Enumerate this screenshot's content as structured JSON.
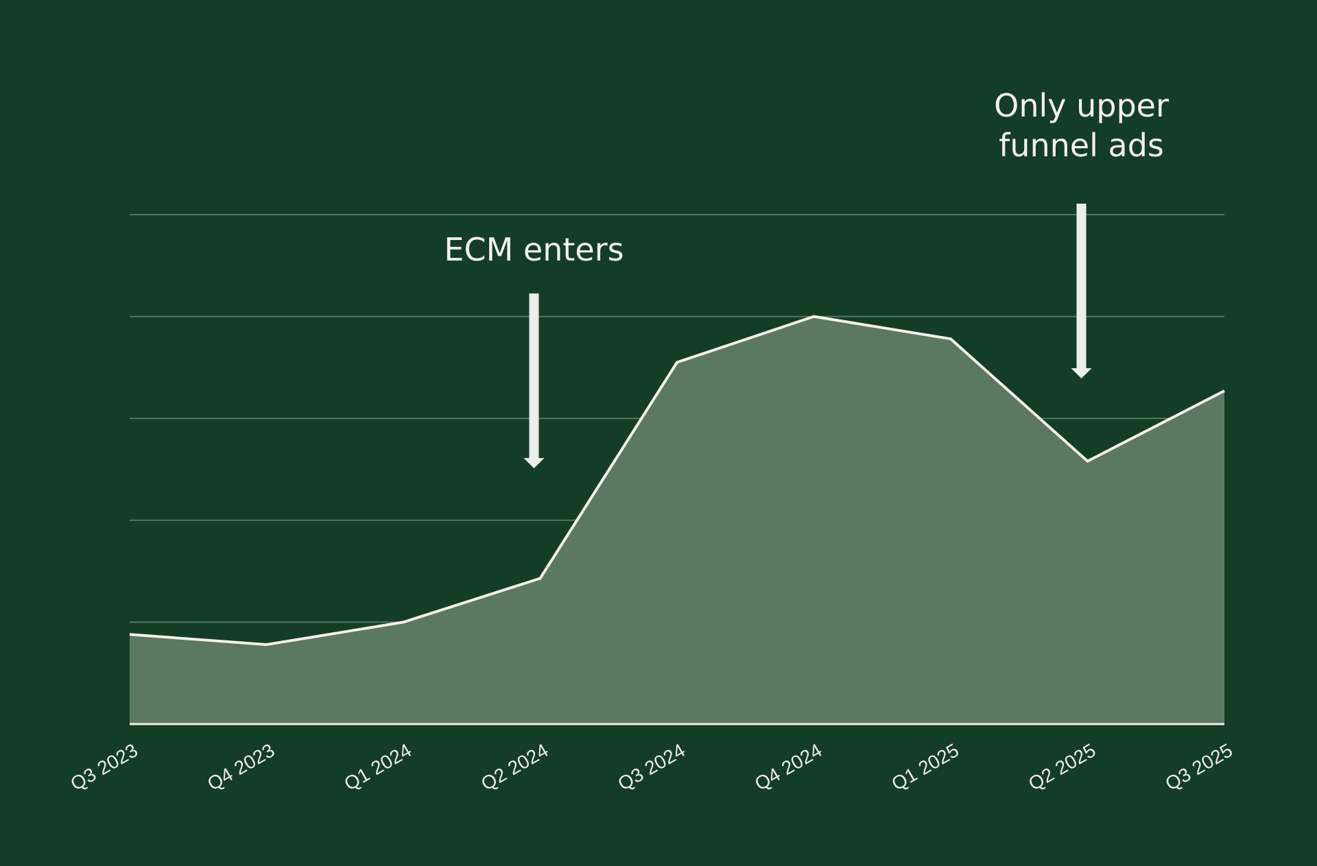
{
  "colors": {
    "background": "#143d26",
    "area_fill": "#5a7862",
    "line": "#f3f1e6",
    "gridline": "#4f7a5d",
    "text": "#f2f2ee",
    "arrow": "#ededea"
  },
  "chart_data": {
    "type": "area",
    "categories": [
      "Q3 2023",
      "Q4 2023",
      "Q1 2024",
      "Q2 2024",
      "Q3 2024",
      "Q4 2024",
      "Q1 2025",
      "Q2 2025",
      "Q3 2025"
    ],
    "values": [
      0.88,
      0.78,
      1.0,
      1.43,
      3.55,
      4.0,
      3.78,
      2.58,
      3.27
    ],
    "ylim": [
      0,
      5
    ],
    "yticks": [
      0,
      1,
      2,
      3,
      4,
      5
    ],
    "y_tick_labels_shown": false,
    "grid": true,
    "title": "",
    "xlabel": "",
    "ylabel": "",
    "annotations": [
      {
        "lines": [
          "ECM enters"
        ],
        "category": "Q2 2024",
        "arrow_direction": "down"
      },
      {
        "lines": [
          "Only upper",
          "funnel ads"
        ],
        "category": "Q2 2025",
        "arrow_direction": "down"
      }
    ]
  }
}
